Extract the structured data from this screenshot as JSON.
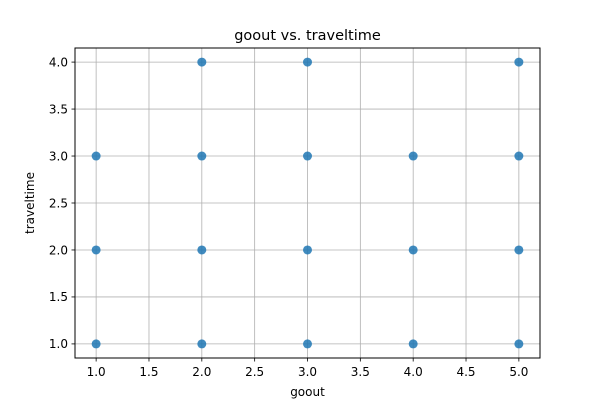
{
  "chart_data": {
    "type": "scatter",
    "title": "goout vs. traveltime",
    "xlabel": "goout",
    "ylabel": "traveltime",
    "xlim": [
      0.8,
      5.2
    ],
    "ylim": [
      0.85,
      4.15
    ],
    "x_ticks": [
      1.0,
      1.5,
      2.0,
      2.5,
      3.0,
      3.5,
      4.0,
      4.5,
      5.0
    ],
    "y_ticks": [
      1.0,
      1.5,
      2.0,
      2.5,
      3.0,
      3.5,
      4.0
    ],
    "x_tick_labels": [
      "1.0",
      "1.5",
      "2.0",
      "2.5",
      "3.0",
      "3.5",
      "4.0",
      "4.5",
      "5.0"
    ],
    "y_tick_labels": [
      "1.0",
      "1.5",
      "2.0",
      "2.5",
      "3.0",
      "3.5",
      "4.0"
    ],
    "grid": true,
    "marker_color": "#1f77b4",
    "points": [
      {
        "x": 1,
        "y": 1
      },
      {
        "x": 1,
        "y": 2
      },
      {
        "x": 1,
        "y": 3
      },
      {
        "x": 2,
        "y": 1
      },
      {
        "x": 2,
        "y": 2
      },
      {
        "x": 2,
        "y": 3
      },
      {
        "x": 2,
        "y": 4
      },
      {
        "x": 3,
        "y": 1
      },
      {
        "x": 3,
        "y": 2
      },
      {
        "x": 3,
        "y": 3
      },
      {
        "x": 3,
        "y": 4
      },
      {
        "x": 4,
        "y": 1
      },
      {
        "x": 4,
        "y": 2
      },
      {
        "x": 4,
        "y": 3
      },
      {
        "x": 5,
        "y": 1
      },
      {
        "x": 5,
        "y": 2
      },
      {
        "x": 5,
        "y": 3
      },
      {
        "x": 5,
        "y": 4
      }
    ]
  }
}
